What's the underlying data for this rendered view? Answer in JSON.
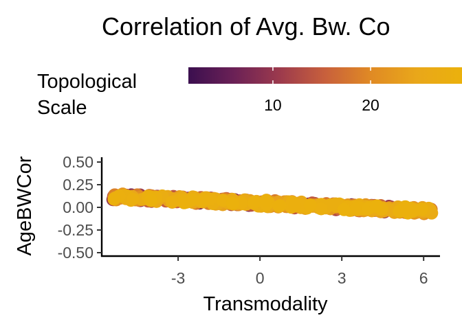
{
  "chart_data": {
    "type": "scatter",
    "title": "Correlation of Avg. Bw. Co",
    "xlabel": "Transmodality",
    "ylabel": "AgeBWCor",
    "xlim": [
      -5.8,
      6.6
    ],
    "ylim": [
      -0.55,
      0.55
    ],
    "x_ticks": [
      -3,
      0,
      3,
      6
    ],
    "x_tick_labels": [
      "-3",
      "0",
      "3",
      "6"
    ],
    "y_ticks": [
      0.5,
      0.25,
      0.0,
      -0.25,
      -0.5
    ],
    "y_tick_labels": [
      "0.50",
      "0.25",
      "0.00",
      "-0.25",
      "-0.50"
    ],
    "grid": false,
    "legend": {
      "title": "Topological Scale",
      "position": "top",
      "type": "colorbar",
      "palette": [
        "#3b0f4f",
        "#6b2156",
        "#9c3a4d",
        "#c8603c",
        "#e08a24",
        "#e9a71a",
        "#ebb10c"
      ],
      "range": [
        1,
        30
      ],
      "visible_range": [
        1,
        29
      ],
      "ticks": [
        10,
        20
      ],
      "tick_labels": [
        "10",
        "20"
      ]
    },
    "trend": {
      "description_values": {
        "x_start": -5.4,
        "y_start": 0.12,
        "x_end": 6.3,
        "y_end": -0.04
      },
      "band": 0.035
    },
    "point_count": 520
  }
}
